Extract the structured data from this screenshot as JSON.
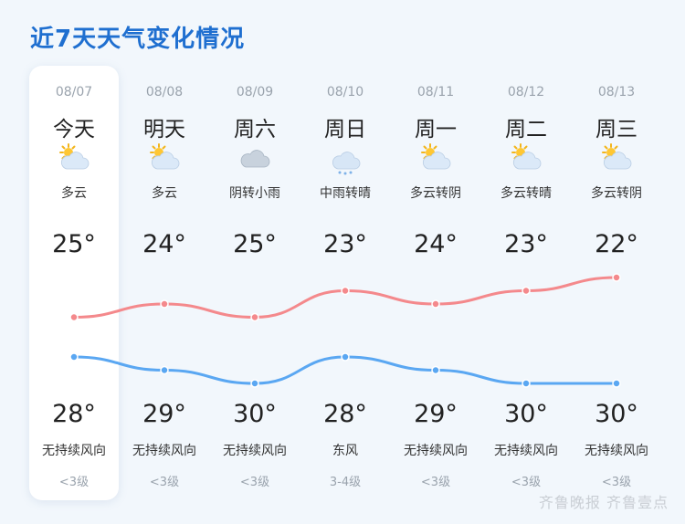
{
  "title": "近7天天气变化情况",
  "days": [
    {
      "date": "08/07",
      "name": "今天",
      "condition": "多云",
      "icon": "partly-cloudy-icon",
      "high": "25°",
      "low": "28°",
      "wind": "无持续风向",
      "level": "<3级"
    },
    {
      "date": "08/08",
      "name": "明天",
      "condition": "多云",
      "icon": "partly-cloudy-icon",
      "high": "24°",
      "low": "29°",
      "wind": "无持续风向",
      "level": "<3级"
    },
    {
      "date": "08/09",
      "name": "周六",
      "condition": "阴转小雨",
      "icon": "overcast-icon",
      "high": "25°",
      "low": "30°",
      "wind": "无持续风向",
      "level": "<3级"
    },
    {
      "date": "08/10",
      "name": "周日",
      "condition": "中雨转晴",
      "icon": "rain-icon",
      "high": "23°",
      "low": "28°",
      "wind": "东风",
      "level": "3-4级"
    },
    {
      "date": "08/11",
      "name": "周一",
      "condition": "多云转阴",
      "icon": "partly-cloudy-icon",
      "high": "24°",
      "low": "29°",
      "wind": "无持续风向",
      "level": "<3级"
    },
    {
      "date": "08/12",
      "name": "周二",
      "condition": "多云转晴",
      "icon": "partly-cloudy-icon",
      "high": "23°",
      "low": "30°",
      "wind": "无持续风向",
      "level": "<3级"
    },
    {
      "date": "08/13",
      "name": "周三",
      "condition": "多云转阴",
      "icon": "partly-cloudy-icon",
      "high": "22°",
      "low": "30°",
      "wind": "无持续风向",
      "level": "<3级"
    }
  ],
  "chart_data": {
    "type": "line",
    "categories": [
      "08/07",
      "08/08",
      "08/09",
      "08/10",
      "08/11",
      "08/12",
      "08/13"
    ],
    "series": [
      {
        "values": [
          25,
          24,
          25,
          23,
          24,
          23,
          22
        ],
        "color": "#f4898c"
      },
      {
        "values": [
          28,
          29,
          30,
          28,
          29,
          30,
          30
        ],
        "color": "#5aa7f2"
      }
    ]
  },
  "colors": {
    "accent": "#1f6fd0",
    "high_line": "#f4898c",
    "low_line": "#5aa7f2"
  },
  "watermark": "齐鲁晚报 齐鲁壹点"
}
